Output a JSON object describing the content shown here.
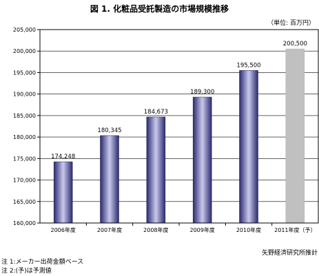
{
  "title": "図 1. 化粧品受託製造の市場規模推移",
  "unit": "（単位: 百万円）",
  "chart_data": {
    "type": "bar",
    "categories": [
      "2006年度",
      "2007年度",
      "2008年度",
      "2009年度",
      "2010年度",
      "2011年度（予）"
    ],
    "values": [
      174248,
      180345,
      184673,
      189300,
      195500,
      200500
    ],
    "value_labels": [
      "174,248",
      "180,345",
      "184,673",
      "189,300",
      "195,500",
      "200,500"
    ],
    "ylim": [
      160000,
      205000
    ],
    "yticks": [
      160000,
      165000,
      170000,
      175000,
      180000,
      185000,
      190000,
      195000,
      200000,
      205000
    ],
    "ytick_labels": [
      "160,000",
      "165,000",
      "170,000",
      "175,000",
      "180,000",
      "185,000",
      "190,000",
      "195,000",
      "200,000",
      "205,000"
    ],
    "grid": true,
    "forecast_index": 5,
    "colors": {
      "bar_dark": "#2a2a6e",
      "bar_light": "#c9c9ee",
      "forecast": "#c0c0c0",
      "grid": "#000000"
    }
  },
  "source": "矢野経済研究所推計",
  "notes": [
    "注 1:メーカー出荷金額ベース",
    "注 2:(予)は予測値"
  ]
}
